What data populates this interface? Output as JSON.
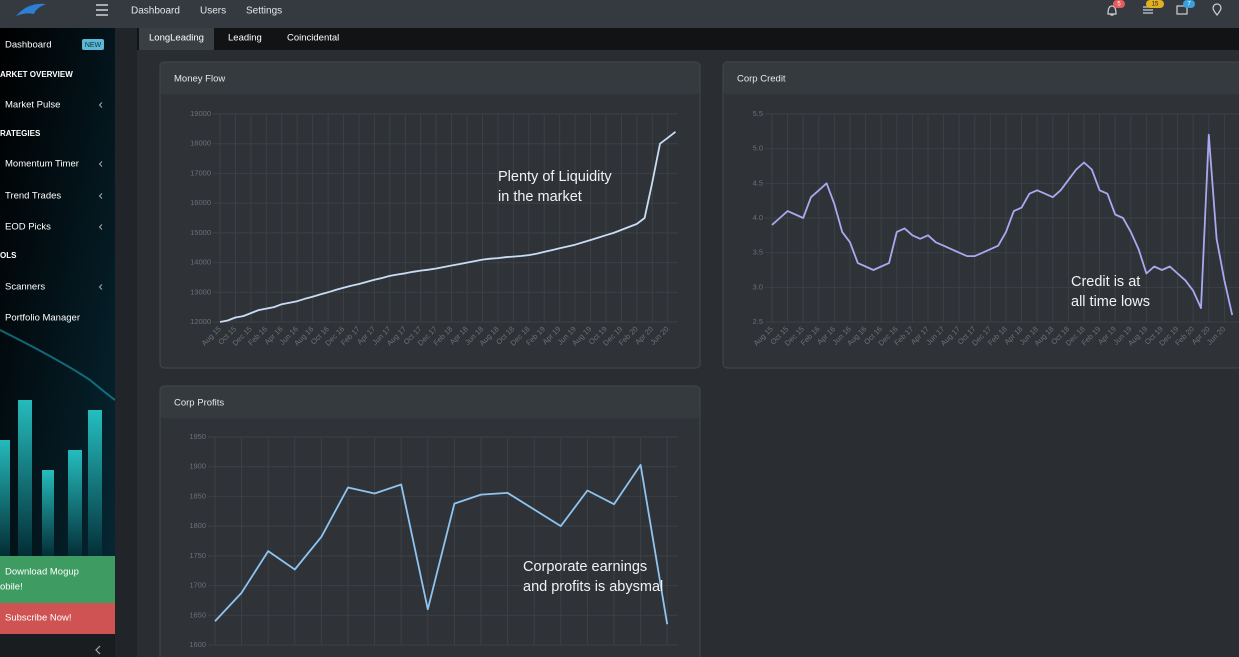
{
  "nav": {
    "items": [
      "Dashboard",
      "Users",
      "Settings"
    ],
    "badges": [
      "5",
      "15",
      "7"
    ]
  },
  "tabs": [
    "LongLeading",
    "Leading",
    "Coincidental"
  ],
  "sidebar": {
    "items": [
      {
        "text": "Dashboard",
        "badge": "NEW"
      },
      {
        "text": "ARKET OVERVIEW",
        "heading": true
      },
      {
        "text": "Market Pulse",
        "arrow": true
      },
      {
        "text": "RATEGIES",
        "heading": true
      },
      {
        "text": "Momentum Timer",
        "arrow": true
      },
      {
        "text": "Trend Trades",
        "arrow": true
      },
      {
        "text": "EOD Picks",
        "arrow": true
      },
      {
        "text": "OLS",
        "heading": true
      },
      {
        "text": "Scanners",
        "arrow": true
      },
      {
        "text": "Portfolio Manager"
      }
    ],
    "download": [
      "Download Mogup",
      "obile!"
    ],
    "subscribe": "Subscribe Now!"
  },
  "chart_data": [
    {
      "type": "line",
      "title": "Money Flow",
      "annotation": [
        "Plenty of Liquidity",
        "in the market"
      ],
      "categories": [
        "Aug 15",
        null,
        "Oct 15",
        null,
        "Dec 15",
        null,
        "Feb 16",
        null,
        "Apr 16",
        null,
        "Jun 16",
        null,
        "Aug 16",
        null,
        "Oct 16",
        null,
        "Dec 16",
        null,
        "Feb 17",
        null,
        "Apr 17",
        null,
        "Jun 17",
        null,
        "Aug 17",
        null,
        "Oct 17",
        null,
        "Dec 17",
        null,
        "Feb 18",
        null,
        "Apr 18",
        null,
        "Jun 18",
        null,
        "Aug 18",
        null,
        "Oct 18",
        null,
        "Dec 18",
        null,
        "Feb 19",
        null,
        "Apr 19",
        null,
        "Jun 19",
        null,
        "Aug 19",
        null,
        "Oct 19",
        null,
        "Dec 19",
        null,
        "Feb 20",
        null,
        "Apr 20",
        null,
        "Jun 20",
        null
      ],
      "values": [
        12000,
        12050,
        12150,
        12200,
        12300,
        12400,
        12450,
        12500,
        12600,
        12650,
        12700,
        12780,
        12850,
        12930,
        13000,
        13080,
        13150,
        13220,
        13280,
        13350,
        13420,
        13480,
        13550,
        13600,
        13640,
        13690,
        13730,
        13760,
        13800,
        13850,
        13900,
        13950,
        14000,
        14050,
        14100,
        14130,
        14150,
        14180,
        14200,
        14220,
        14250,
        14300,
        14360,
        14420,
        14480,
        14540,
        14600,
        14680,
        14760,
        14840,
        14920,
        15000,
        15100,
        15200,
        15300,
        15500,
        16700,
        18000,
        18200,
        18400
      ],
      "color": "#c9dcf5",
      "ylim": [
        12000,
        19000
      ],
      "yticks": [
        12000,
        13000,
        14000,
        15000,
        16000,
        17000,
        18000,
        19000
      ],
      "grid": true
    },
    {
      "type": "line",
      "title": "Corp Credit",
      "annotation": [
        "Credit is at",
        "all time lows"
      ],
      "categories": [
        "Aug 15",
        null,
        "Oct 15",
        null,
        "Dec 15",
        null,
        "Feb 16",
        null,
        "Apr 16",
        null,
        "Jun 16",
        null,
        "Aug 16",
        null,
        "Oct 16",
        null,
        "Dec 16",
        null,
        "Feb 17",
        null,
        "Apr 17",
        null,
        "Jun 17",
        null,
        "Aug 17",
        null,
        "Oct 17",
        null,
        "Dec 17",
        null,
        "Feb 18",
        null,
        "Apr 18",
        null,
        "Jun 18",
        null,
        "Aug 18",
        null,
        "Oct 18",
        null,
        "Dec 18",
        null,
        "Feb 19",
        null,
        "Apr 19",
        null,
        "Jun 19",
        null,
        "Aug 19",
        null,
        "Oct 19",
        null,
        "Dec 19",
        null,
        "Feb 20",
        null,
        "Apr 20",
        null,
        "Jun 20",
        null
      ],
      "values": [
        3.9,
        4.0,
        4.1,
        4.05,
        4.0,
        4.3,
        4.4,
        4.5,
        4.2,
        3.8,
        3.65,
        3.35,
        3.3,
        3.25,
        3.3,
        3.35,
        3.8,
        3.85,
        3.75,
        3.7,
        3.75,
        3.65,
        3.6,
        3.55,
        3.5,
        3.45,
        3.45,
        3.5,
        3.55,
        3.6,
        3.8,
        4.1,
        4.15,
        4.35,
        4.4,
        4.35,
        4.3,
        4.4,
        4.55,
        4.7,
        4.8,
        4.7,
        4.4,
        4.35,
        4.05,
        4.0,
        3.8,
        3.55,
        3.2,
        3.3,
        3.25,
        3.3,
        3.2,
        3.1,
        2.95,
        2.7,
        5.2,
        3.7,
        3.1,
        2.6
      ],
      "color": "#a9a8f0",
      "ylim": [
        2.5,
        5.5
      ],
      "yticks": [
        2.5,
        {
          "value": 3,
          "label": "3.0"
        },
        3.5,
        {
          "value": 4,
          "label": "4.0"
        },
        4.5,
        {
          "value": 5,
          "label": "5.0"
        },
        5.5
      ],
      "grid": true
    },
    {
      "type": "line",
      "title": "Corp Profits",
      "annotation": [
        "Corporate earnings",
        "and profits is abysmal"
      ],
      "categories": [
        null,
        null,
        null,
        null,
        null,
        null,
        null,
        null,
        null,
        null,
        null,
        null,
        null,
        null,
        null,
        null,
        null,
        null
      ],
      "values": [
        1640,
        1688,
        1758,
        1727,
        1782,
        1865,
        1855,
        1870,
        1660,
        1838,
        1853,
        1856,
        1828,
        1800,
        1860,
        1837,
        1903,
        1635
      ],
      "color": "#8fc4f0",
      "ylim": [
        1600,
        1950
      ],
      "yticks": [
        1600,
        1650,
        1700,
        1750,
        1800,
        1850,
        1900,
        1950
      ],
      "grid": true
    }
  ]
}
